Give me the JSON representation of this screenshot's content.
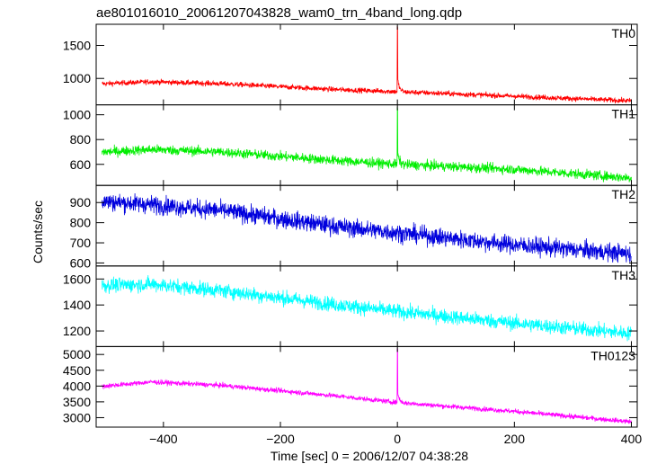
{
  "chart_data": {
    "type": "line",
    "title": "ae801016010_20061207043828_wam0_trn_4band_long.qdp",
    "xlabel": "Time [sec] 0 = 2006/12/07 04:38:28",
    "ylabel": "Counts/sec",
    "xlim": [
      -515,
      410
    ],
    "x_ticks": [
      -400,
      -200,
      0,
      200,
      400
    ],
    "x_tick_labels": [
      "−400",
      "−200",
      "0",
      "200",
      "400"
    ],
    "panels": [
      {
        "name": "TH0",
        "color": "#ff0000",
        "ylim": [
          600,
          1820
        ],
        "y_ticks": [
          1000,
          1500
        ],
        "trend": {
          "x": [
            -500,
            -420,
            -300,
            -100,
            0,
            200,
            400
          ],
          "y": [
            920,
            950,
            920,
            830,
            800,
            730,
            660
          ]
        },
        "noise": 28,
        "spike": {
          "x": 0,
          "peak": 1800
        }
      },
      {
        "name": "TH1",
        "color": "#00ee00",
        "ylim": [
          430,
          1080
        ],
        "y_ticks": [
          600,
          800,
          1000
        ],
        "trend": {
          "x": [
            -500,
            -420,
            -300,
            -100,
            0,
            200,
            400
          ],
          "y": [
            700,
            720,
            700,
            630,
            600,
            560,
            490
          ]
        },
        "noise": 28,
        "spike": {
          "x": 0,
          "peak": 1070
        }
      },
      {
        "name": "TH2",
        "color": "#0000dd",
        "ylim": [
          585,
          985
        ],
        "y_ticks": [
          600,
          700,
          800,
          900
        ],
        "trend": {
          "x": [
            -500,
            -420,
            -300,
            -100,
            0,
            200,
            400
          ],
          "y": [
            905,
            890,
            860,
            780,
            750,
            690,
            645
          ]
        },
        "noise": 32,
        "spike": null
      },
      {
        "name": "TH3",
        "color": "#00ffff",
        "ylim": [
          1080,
          1700
        ],
        "y_ticks": [
          1200,
          1400,
          1600
        ],
        "trend": {
          "x": [
            -500,
            -420,
            -300,
            -100,
            0,
            200,
            400
          ],
          "y": [
            1550,
            1560,
            1510,
            1400,
            1350,
            1260,
            1180
          ]
        },
        "noise": 40,
        "spike": null
      },
      {
        "name": "TH0123",
        "color": "#ff00ff",
        "ylim": [
          2700,
          5250
        ],
        "y_ticks": [
          3000,
          3500,
          4000,
          4500,
          5000
        ],
        "trend": {
          "x": [
            -500,
            -420,
            -300,
            -100,
            0,
            200,
            400
          ],
          "y": [
            4000,
            4130,
            4020,
            3680,
            3480,
            3200,
            2870
          ]
        },
        "noise": 55,
        "spike": {
          "x": 0,
          "peak": 5200
        }
      }
    ]
  }
}
